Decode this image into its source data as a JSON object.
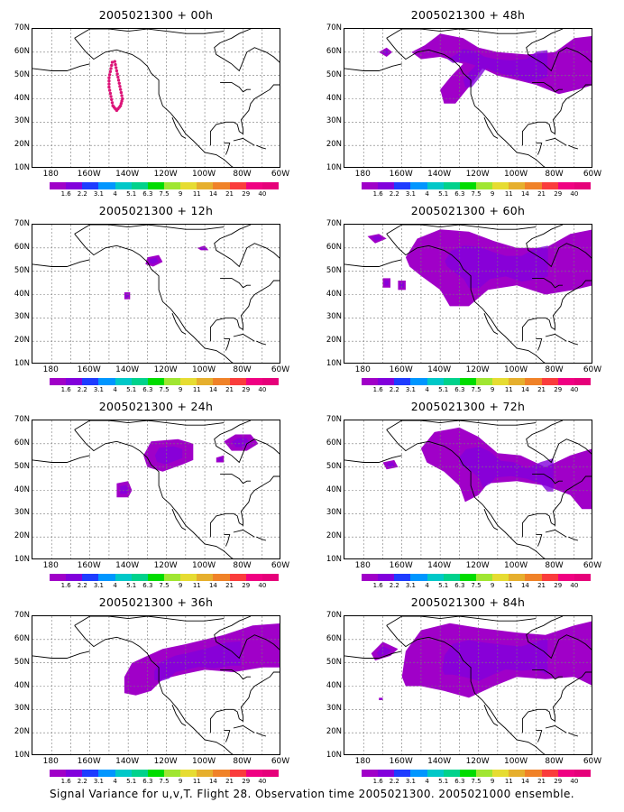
{
  "caption": "Signal Variance for u,v,T. Flight 28. Observation time 2005021300. 2005021000 ensemble.",
  "lat_labels": [
    "70N",
    "60N",
    "50N",
    "40N",
    "30N",
    "20N",
    "10N"
  ],
  "lon_labels": [
    "180",
    "160W",
    "140W",
    "120W",
    "100W",
    "80W",
    "60W"
  ],
  "colorbar": {
    "labels": [
      "1.6",
      "2.2",
      "3.1",
      "4",
      "5.1",
      "6.3",
      "7.5",
      "9",
      "11",
      "14",
      "21",
      "29",
      "40"
    ],
    "colors": [
      "#a000c8",
      "#8200dc",
      "#1e3cff",
      "#0096ff",
      "#00c8c8",
      "#00d28c",
      "#00dc00",
      "#a0e632",
      "#e6dc32",
      "#e6af2d",
      "#f08228",
      "#fa3c3c",
      "#f00082",
      "#e6007a"
    ]
  },
  "panels": [
    {
      "title": "2005021300 + 00h",
      "col": 0,
      "row": 0,
      "track": true,
      "blobs": []
    },
    {
      "title": "2005021300 + 48h",
      "col": 1,
      "row": 0,
      "track": false,
      "blobs": [
        [
          [
            -172,
            60
          ],
          [
            -168,
            62
          ],
          [
            -165,
            60
          ],
          [
            -168,
            58
          ]
        ],
        [
          [
            -148,
            63
          ],
          [
            -140,
            68
          ],
          [
            -128,
            66
          ],
          [
            -120,
            62
          ],
          [
            -110,
            60
          ],
          [
            -95,
            59
          ],
          [
            -80,
            60
          ],
          [
            -70,
            66
          ],
          [
            -60,
            67
          ],
          [
            -60,
            46
          ],
          [
            -68,
            44
          ],
          [
            -78,
            42
          ],
          [
            -90,
            46
          ],
          [
            -100,
            48
          ],
          [
            -110,
            50
          ],
          [
            -118,
            53
          ],
          [
            -124,
            46
          ],
          [
            -128,
            42
          ],
          [
            -132,
            38
          ],
          [
            -138,
            38
          ],
          [
            -140,
            44
          ],
          [
            -134,
            50
          ],
          [
            -128,
            55
          ],
          [
            -140,
            58
          ],
          [
            -150,
            57
          ],
          [
            -155,
            60
          ]
        ]
      ]
    },
    {
      "title": "2005021300 + 12h",
      "col": 0,
      "row": 1,
      "track": false,
      "blobs": [
        [
          [
            -130,
            56
          ],
          [
            -124,
            57
          ],
          [
            -122,
            54
          ],
          [
            -127,
            52
          ],
          [
            -131,
            53
          ]
        ],
        [
          [
            -142,
            41
          ],
          [
            -139,
            41
          ],
          [
            -139,
            38
          ],
          [
            -142,
            38
          ]
        ],
        [
          [
            -104,
            60
          ],
          [
            -100,
            61
          ],
          [
            -98,
            59
          ],
          [
            -102,
            59
          ]
        ]
      ]
    },
    {
      "title": "2005021300 + 60h",
      "col": 1,
      "row": 1,
      "track": false,
      "blobs": [
        [
          [
            -178,
            65
          ],
          [
            -172,
            66
          ],
          [
            -168,
            64
          ],
          [
            -174,
            62
          ]
        ],
        [
          [
            -170,
            47
          ],
          [
            -166,
            47
          ],
          [
            -166,
            43
          ],
          [
            -170,
            43
          ]
        ],
        [
          [
            -162,
            46
          ],
          [
            -158,
            46
          ],
          [
            -158,
            42
          ],
          [
            -162,
            42
          ]
        ],
        [
          [
            -158,
            56
          ],
          [
            -152,
            64
          ],
          [
            -140,
            68
          ],
          [
            -125,
            67
          ],
          [
            -112,
            63
          ],
          [
            -100,
            60
          ],
          [
            -85,
            60
          ],
          [
            -72,
            66
          ],
          [
            -60,
            68
          ],
          [
            -60,
            44
          ],
          [
            -70,
            42
          ],
          [
            -85,
            40
          ],
          [
            -100,
            44
          ],
          [
            -115,
            42
          ],
          [
            -125,
            35
          ],
          [
            -135,
            35
          ],
          [
            -140,
            42
          ],
          [
            -150,
            48
          ],
          [
            -156,
            52
          ]
        ]
      ]
    },
    {
      "title": "2005021300 + 24h",
      "col": 0,
      "row": 2,
      "track": false,
      "blobs": [
        [
          [
            -132,
            55
          ],
          [
            -128,
            61
          ],
          [
            -114,
            62
          ],
          [
            -106,
            60
          ],
          [
            -106,
            53
          ],
          [
            -112,
            51
          ],
          [
            -122,
            48
          ],
          [
            -130,
            50
          ]
        ],
        [
          [
            -90,
            61
          ],
          [
            -84,
            64
          ],
          [
            -76,
            64
          ],
          [
            -72,
            60
          ],
          [
            -78,
            57
          ],
          [
            -86,
            57
          ]
        ],
        [
          [
            -146,
            43
          ],
          [
            -140,
            44
          ],
          [
            -138,
            40
          ],
          [
            -140,
            37
          ],
          [
            -146,
            37
          ]
        ],
        [
          [
            -94,
            54
          ],
          [
            -90,
            55
          ],
          [
            -90,
            52
          ],
          [
            -94,
            52
          ]
        ]
      ]
    },
    {
      "title": "2005021300 + 72h",
      "col": 1,
      "row": 2,
      "track": false,
      "blobs": [
        [
          [
            -170,
            52
          ],
          [
            -164,
            53
          ],
          [
            -162,
            50
          ],
          [
            -168,
            49
          ]
        ],
        [
          [
            -150,
            58
          ],
          [
            -143,
            65
          ],
          [
            -130,
            67
          ],
          [
            -120,
            63
          ],
          [
            -110,
            56
          ],
          [
            -98,
            55
          ],
          [
            -85,
            50
          ],
          [
            -72,
            55
          ],
          [
            -60,
            58
          ],
          [
            -60,
            32
          ],
          [
            -66,
            32
          ],
          [
            -72,
            38
          ],
          [
            -85,
            42
          ],
          [
            -100,
            44
          ],
          [
            -115,
            43
          ],
          [
            -120,
            38
          ],
          [
            -127,
            35
          ],
          [
            -130,
            42
          ],
          [
            -138,
            48
          ],
          [
            -147,
            52
          ]
        ]
      ]
    },
    {
      "title": "2005021300 + 36h",
      "col": 0,
      "row": 3,
      "track": false,
      "blobs": [
        [
          [
            -142,
            44
          ],
          [
            -138,
            50
          ],
          [
            -130,
            53
          ],
          [
            -122,
            56
          ],
          [
            -110,
            58
          ],
          [
            -90,
            62
          ],
          [
            -75,
            66
          ],
          [
            -60,
            67
          ],
          [
            -60,
            48
          ],
          [
            -70,
            48
          ],
          [
            -85,
            46
          ],
          [
            -100,
            47
          ],
          [
            -112,
            45
          ],
          [
            -122,
            43
          ],
          [
            -128,
            38
          ],
          [
            -136,
            36
          ],
          [
            -142,
            37
          ]
        ]
      ]
    },
    {
      "title": "2005021300 + 84h",
      "col": 1,
      "row": 3,
      "track": false,
      "blobs": [
        [
          [
            -176,
            54
          ],
          [
            -170,
            59
          ],
          [
            -162,
            56
          ],
          [
            -166,
            53
          ],
          [
            -174,
            51
          ]
        ],
        [
          [
            -172,
            35
          ],
          [
            -170,
            35
          ],
          [
            -170,
            34
          ],
          [
            -172,
            34
          ]
        ],
        [
          [
            -160,
            44
          ],
          [
            -158,
            55
          ],
          [
            -150,
            64
          ],
          [
            -135,
            67
          ],
          [
            -120,
            65
          ],
          [
            -100,
            63
          ],
          [
            -85,
            62
          ],
          [
            -70,
            66
          ],
          [
            -60,
            68
          ],
          [
            -60,
            40
          ],
          [
            -70,
            44
          ],
          [
            -85,
            43
          ],
          [
            -100,
            44
          ],
          [
            -112,
            40
          ],
          [
            -125,
            35
          ],
          [
            -138,
            38
          ],
          [
            -150,
            40
          ],
          [
            -158,
            40
          ]
        ]
      ]
    }
  ]
}
